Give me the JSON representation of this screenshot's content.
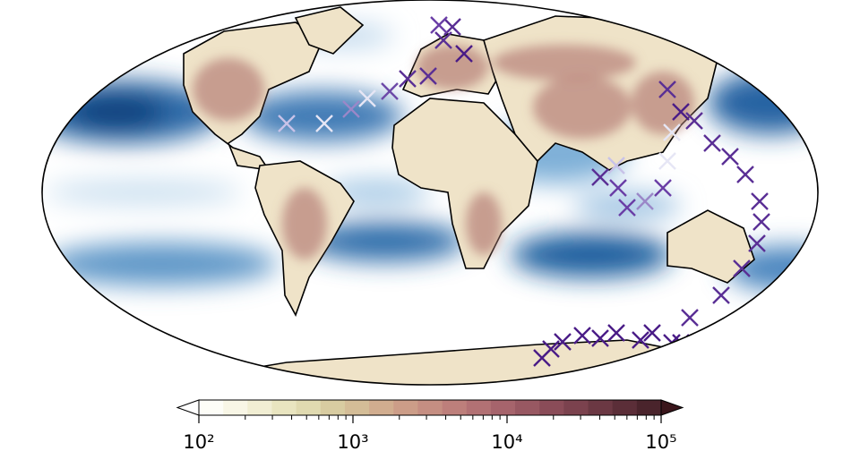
{
  "colorbar": {
    "scale": "log",
    "lim": [
      100,
      100000
    ],
    "ticks": [
      {
        "value": 100,
        "label": "10²"
      },
      {
        "value": 1000,
        "label": "10³"
      },
      {
        "value": 10000,
        "label": "10⁴"
      },
      {
        "value": 100000,
        "label": "10⁵"
      }
    ],
    "minor_ticks": true,
    "colors": [
      "#fdfdf7",
      "#f8f6e6",
      "#f1eed3",
      "#e9e5c0",
      "#e0dab0",
      "#d8cca1",
      "#d4bd97",
      "#d1ad8f",
      "#cc9d88",
      "#c58e82",
      "#bd7f7b",
      "#b27174",
      "#a6646c",
      "#985862",
      "#8a4c58",
      "#7b424e",
      "#6b3843",
      "#5b2e38",
      "#4a242c"
    ],
    "under_color": "#ffffff",
    "over_color": "#3a161b"
  }
}
